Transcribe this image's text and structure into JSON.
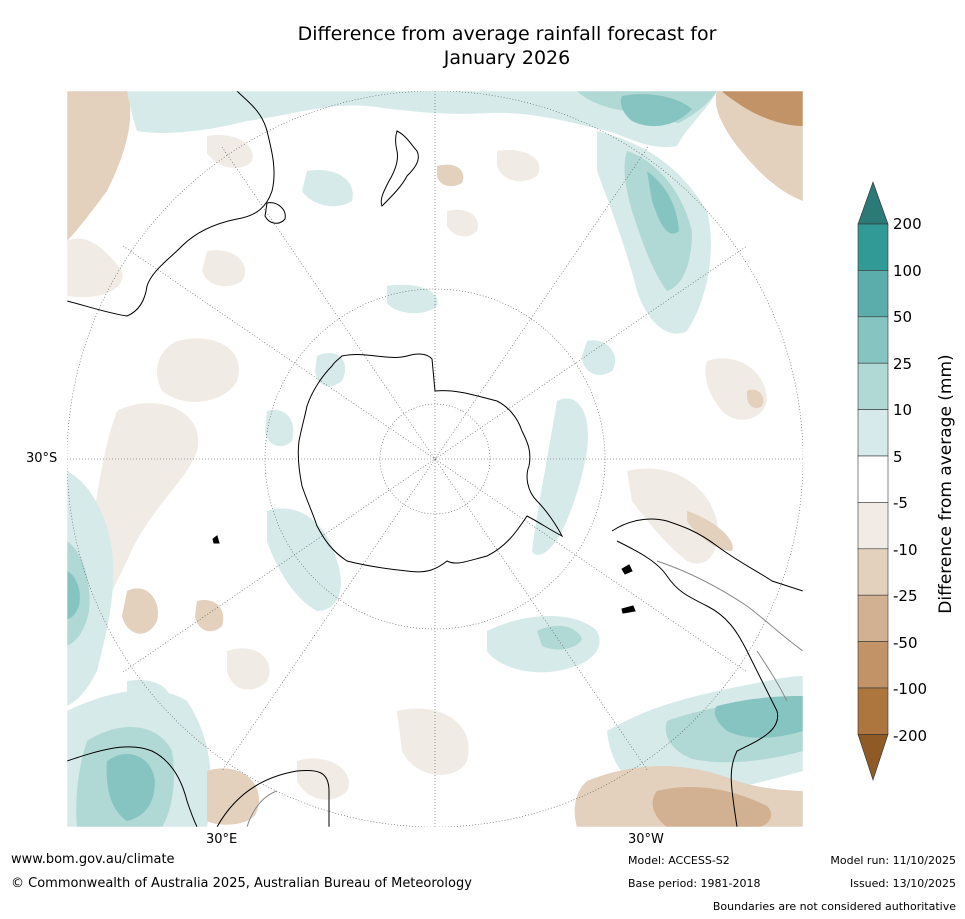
{
  "title": {
    "line1": "Difference from average rainfall forecast for",
    "line2": "January 2026"
  },
  "map": {
    "projection": "south-polar-stereographic",
    "lat_label": "30°S",
    "lon_label_east": "30°E",
    "lon_label_west": "30°W"
  },
  "colorbar": {
    "title": "Difference from average (mm)",
    "levels": [
      "200",
      "100",
      "50",
      "25",
      "10",
      "5",
      "-5",
      "-10",
      "-25",
      "-50",
      "-100",
      "-200"
    ],
    "colors": {
      "over": "#2b7a78",
      "c100_200": "#319a96",
      "c50_100": "#5aadaa",
      "c25_50": "#86c4c1",
      "c10_25": "#b0d8d5",
      "c5_10": "#d6ebe9",
      "c_5_5": "#ffffff",
      "cm10_m5": "#f1ebe5",
      "cm25_m10": "#e3d0bd",
      "cm50_m25": "#d2b192",
      "cm100_m50": "#c29366",
      "cm200_m100": "#ad763e",
      "under": "#8f5a25"
    }
  },
  "footer": {
    "website": "www.bom.gov.au/climate",
    "copyright": "© Commonwealth of Australia 2025, Australian Bureau of Meteorology",
    "model": "Model: ACCESS-S2",
    "base_period": "Base period: 1981-2018",
    "model_run": "Model run: 11/10/2025",
    "issued": "Issued: 13/10/2025",
    "disclaimer": "Boundaries are not considered authoritative"
  }
}
